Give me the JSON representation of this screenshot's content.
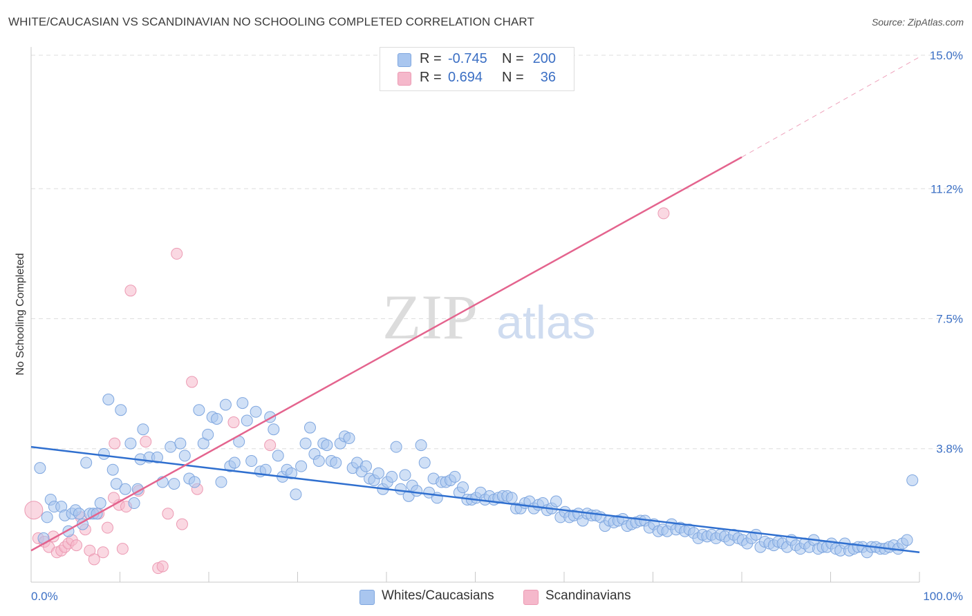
{
  "header": {
    "title": "WHITE/CAUCASIAN VS SCANDINAVIAN NO SCHOOLING COMPLETED CORRELATION CHART",
    "source": "Source: ZipAtlas.com"
  },
  "watermark": {
    "zip": "ZIP",
    "atlas": "atlas"
  },
  "legend_top": [
    {
      "r_label": "R =",
      "r_value": "-0.745",
      "n_label": "N =",
      "n_value": "200"
    },
    {
      "r_label": "R =",
      "r_value": "0.694",
      "n_label": "N =",
      "n_value": "36"
    }
  ],
  "legend_bottom": [
    {
      "label": "Whites/Caucasians"
    },
    {
      "label": "Scandinavians"
    }
  ],
  "colors": {
    "blue_fill": "#a9c6ef",
    "blue_stroke": "#7ea6df",
    "blue_line": "#2f6fcf",
    "pink_fill": "#f5b8cb",
    "pink_stroke": "#ec9ab3",
    "pink_line": "#e4648e",
    "tick_text": "#3b6fc4",
    "grid": "#dddddd"
  },
  "chart_data": {
    "type": "scatter",
    "ylabel": "No Schooling Completed",
    "xlabel": "",
    "xlim": [
      0,
      100
    ],
    "ylim": [
      0,
      15.0
    ],
    "x_tick_labels": [
      "0.0%",
      "100.0%"
    ],
    "y_ticks": [
      3.8,
      7.5,
      11.2,
      15.0
    ],
    "y_tick_labels": [
      "3.8%",
      "7.5%",
      "11.2%",
      "15.0%"
    ],
    "grid": true,
    "legend_position": "top-center",
    "series": [
      {
        "name": "Whites/Caucasians",
        "color": "#a9c6ef",
        "trendline": {
          "x": [
            0,
            100
          ],
          "y": [
            3.85,
            0.85
          ]
        },
        "points": [
          [
            1,
            3.25
          ],
          [
            1.4,
            1.25
          ],
          [
            1.8,
            1.85
          ],
          [
            2.2,
            2.35
          ],
          [
            2.6,
            2.15
          ],
          [
            3.4,
            2.15
          ],
          [
            3.8,
            1.9
          ],
          [
            4.2,
            1.45
          ],
          [
            4.6,
            1.95
          ],
          [
            5,
            2.05
          ],
          [
            5.4,
            1.95
          ],
          [
            5.8,
            1.65
          ],
          [
            6.2,
            3.4
          ],
          [
            6.6,
            1.95
          ],
          [
            7,
            1.95
          ],
          [
            7.4,
            1.95
          ],
          [
            7.8,
            2.25
          ],
          [
            8.2,
            3.65
          ],
          [
            8.7,
            5.2
          ],
          [
            9.2,
            3.2
          ],
          [
            9.6,
            2.8
          ],
          [
            10.1,
            4.9
          ],
          [
            10.6,
            2.65
          ],
          [
            11.2,
            3.95
          ],
          [
            11.6,
            2.25
          ],
          [
            12,
            2.65
          ],
          [
            12.3,
            3.5
          ],
          [
            12.6,
            4.35
          ],
          [
            13.3,
            3.55
          ],
          [
            14.2,
            3.55
          ],
          [
            14.8,
            2.85
          ],
          [
            15.7,
            3.85
          ],
          [
            16.1,
            2.8
          ],
          [
            16.8,
            3.95
          ],
          [
            17.3,
            3.6
          ],
          [
            17.8,
            2.95
          ],
          [
            18.4,
            2.85
          ],
          [
            18.9,
            4.9
          ],
          [
            19.4,
            3.95
          ],
          [
            19.9,
            4.2
          ],
          [
            20.4,
            4.7
          ],
          [
            20.9,
            4.65
          ],
          [
            21.4,
            2.85
          ],
          [
            21.9,
            5.05
          ],
          [
            22.4,
            3.3
          ],
          [
            22.9,
            3.4
          ],
          [
            23.4,
            4.0
          ],
          [
            23.8,
            5.1
          ],
          [
            24.3,
            4.6
          ],
          [
            24.8,
            3.45
          ],
          [
            25.3,
            4.85
          ],
          [
            25.8,
            3.15
          ],
          [
            26.4,
            3.2
          ],
          [
            26.9,
            4.7
          ],
          [
            27.3,
            4.35
          ],
          [
            27.8,
            3.6
          ],
          [
            28.3,
            3.0
          ],
          [
            28.8,
            3.2
          ],
          [
            29.3,
            3.1
          ],
          [
            29.8,
            2.5
          ],
          [
            30.4,
            3.3
          ],
          [
            30.9,
            3.95
          ],
          [
            31.4,
            4.4
          ],
          [
            31.9,
            3.65
          ],
          [
            32.4,
            3.45
          ],
          [
            32.9,
            3.95
          ],
          [
            33.3,
            3.9
          ],
          [
            33.8,
            3.45
          ],
          [
            34.3,
            3.4
          ],
          [
            34.8,
            3.95
          ],
          [
            35.3,
            4.15
          ],
          [
            35.8,
            4.1
          ],
          [
            36.2,
            3.25
          ],
          [
            36.7,
            3.4
          ],
          [
            37.2,
            3.15
          ],
          [
            37.7,
            3.3
          ],
          [
            38.1,
            2.95
          ],
          [
            38.6,
            2.9
          ],
          [
            39.1,
            3.1
          ],
          [
            39.6,
            2.65
          ],
          [
            40.1,
            2.85
          ],
          [
            40.6,
            3.0
          ],
          [
            41.1,
            3.85
          ],
          [
            41.6,
            2.65
          ],
          [
            42.1,
            3.05
          ],
          [
            42.5,
            2.45
          ],
          [
            42.9,
            2.75
          ],
          [
            43.4,
            2.6
          ],
          [
            43.9,
            3.9
          ],
          [
            44.3,
            3.4
          ],
          [
            44.8,
            2.55
          ],
          [
            45.3,
            2.95
          ],
          [
            45.7,
            2.4
          ],
          [
            46.2,
            2.85
          ],
          [
            46.7,
            2.85
          ],
          [
            47.2,
            2.9
          ],
          [
            47.7,
            3.0
          ],
          [
            48.2,
            2.55
          ],
          [
            48.6,
            2.7
          ],
          [
            49.1,
            2.35
          ],
          [
            49.6,
            2.35
          ],
          [
            50.1,
            2.4
          ],
          [
            50.6,
            2.55
          ],
          [
            51.1,
            2.35
          ],
          [
            51.6,
            2.45
          ],
          [
            52.1,
            2.35
          ],
          [
            52.6,
            2.4
          ],
          [
            53.1,
            2.45
          ],
          [
            53.6,
            2.45
          ],
          [
            54.1,
            2.4
          ],
          [
            54.6,
            2.1
          ],
          [
            55.1,
            2.1
          ],
          [
            55.6,
            2.25
          ],
          [
            56.1,
            2.3
          ],
          [
            56.6,
            2.1
          ],
          [
            57.1,
            2.2
          ],
          [
            57.6,
            2.25
          ],
          [
            58.1,
            2.05
          ],
          [
            58.6,
            2.1
          ],
          [
            59.1,
            2.3
          ],
          [
            59.6,
            1.85
          ],
          [
            60.1,
            2.0
          ],
          [
            60.6,
            1.85
          ],
          [
            61.1,
            1.9
          ],
          [
            61.6,
            1.95
          ],
          [
            62.1,
            1.75
          ],
          [
            62.6,
            1.95
          ],
          [
            63.1,
            1.9
          ],
          [
            63.6,
            1.9
          ],
          [
            64.1,
            1.85
          ],
          [
            64.6,
            1.6
          ],
          [
            65.1,
            1.75
          ],
          [
            65.6,
            1.7
          ],
          [
            66.1,
            1.75
          ],
          [
            66.6,
            1.8
          ],
          [
            67.1,
            1.6
          ],
          [
            67.6,
            1.65
          ],
          [
            68.1,
            1.7
          ],
          [
            68.6,
            1.75
          ],
          [
            69.1,
            1.75
          ],
          [
            69.6,
            1.55
          ],
          [
            70.1,
            1.65
          ],
          [
            70.6,
            1.45
          ],
          [
            71.1,
            1.5
          ],
          [
            71.6,
            1.45
          ],
          [
            72.1,
            1.65
          ],
          [
            72.6,
            1.5
          ],
          [
            73.1,
            1.55
          ],
          [
            73.6,
            1.45
          ],
          [
            74.1,
            1.5
          ],
          [
            74.6,
            1.4
          ],
          [
            75.1,
            1.25
          ],
          [
            75.6,
            1.35
          ],
          [
            76.1,
            1.3
          ],
          [
            76.6,
            1.35
          ],
          [
            77.1,
            1.25
          ],
          [
            77.6,
            1.35
          ],
          [
            78.1,
            1.3
          ],
          [
            78.6,
            1.2
          ],
          [
            79.1,
            1.35
          ],
          [
            79.6,
            1.25
          ],
          [
            80.1,
            1.2
          ],
          [
            80.6,
            1.1
          ],
          [
            81.1,
            1.25
          ],
          [
            81.6,
            1.35
          ],
          [
            82.1,
            1.0
          ],
          [
            82.6,
            1.15
          ],
          [
            83.1,
            1.1
          ],
          [
            83.6,
            1.05
          ],
          [
            84.1,
            1.15
          ],
          [
            84.6,
            1.1
          ],
          [
            85.1,
            1.0
          ],
          [
            85.6,
            1.2
          ],
          [
            86.1,
            1.05
          ],
          [
            86.6,
            0.95
          ],
          [
            87.1,
            1.1
          ],
          [
            87.6,
            1.0
          ],
          [
            88.1,
            1.2
          ],
          [
            88.6,
            0.95
          ],
          [
            89.1,
            1.0
          ],
          [
            89.6,
            1.0
          ],
          [
            90.1,
            1.1
          ],
          [
            90.6,
            0.95
          ],
          [
            91.1,
            0.9
          ],
          [
            91.6,
            1.1
          ],
          [
            92.1,
            0.9
          ],
          [
            92.6,
            0.95
          ],
          [
            93.1,
            1.0
          ],
          [
            93.6,
            1.0
          ],
          [
            94.1,
            0.85
          ],
          [
            94.6,
            1.0
          ],
          [
            95.1,
            1.0
          ],
          [
            95.6,
            0.95
          ],
          [
            96.1,
            0.95
          ],
          [
            96.6,
            1.0
          ],
          [
            97.1,
            1.05
          ],
          [
            97.6,
            0.95
          ],
          [
            98.1,
            1.1
          ],
          [
            98.6,
            1.2
          ],
          [
            99.2,
            2.9
          ]
        ]
      },
      {
        "name": "Scandinavians",
        "color": "#f5b8cb",
        "trendline": {
          "x": [
            0,
            80
          ],
          "y": [
            0.9,
            12.1
          ]
        },
        "trendline_extension": {
          "x": [
            80,
            100
          ],
          "y": [
            12.1,
            14.95
          ]
        },
        "points": [
          [
            0.3,
            2.05
          ],
          [
            0.8,
            1.25
          ],
          [
            1.5,
            1.15
          ],
          [
            2,
            1.0
          ],
          [
            2.5,
            1.3
          ],
          [
            2.9,
            0.85
          ],
          [
            3.4,
            0.9
          ],
          [
            3.8,
            1.0
          ],
          [
            4.2,
            1.1
          ],
          [
            4.6,
            1.2
          ],
          [
            5.1,
            1.05
          ],
          [
            5.6,
            1.85
          ],
          [
            6.1,
            1.5
          ],
          [
            6.6,
            0.9
          ],
          [
            7.1,
            0.65
          ],
          [
            7.6,
            1.95
          ],
          [
            8.1,
            0.85
          ],
          [
            8.6,
            1.55
          ],
          [
            9.4,
            3.95
          ],
          [
            9.9,
            2.2
          ],
          [
            10.3,
            0.95
          ],
          [
            10.7,
            2.15
          ],
          [
            11.2,
            8.3
          ],
          [
            12.1,
            2.6
          ],
          [
            12.9,
            4.0
          ],
          [
            14.3,
            0.4
          ],
          [
            14.8,
            0.45
          ],
          [
            15.4,
            1.95
          ],
          [
            16.4,
            9.35
          ],
          [
            17,
            1.65
          ],
          [
            18.1,
            5.7
          ],
          [
            18.7,
            2.65
          ],
          [
            22.8,
            4.55
          ],
          [
            26.9,
            3.9
          ],
          [
            71.2,
            10.5
          ],
          [
            9.3,
            2.4
          ]
        ]
      }
    ]
  }
}
